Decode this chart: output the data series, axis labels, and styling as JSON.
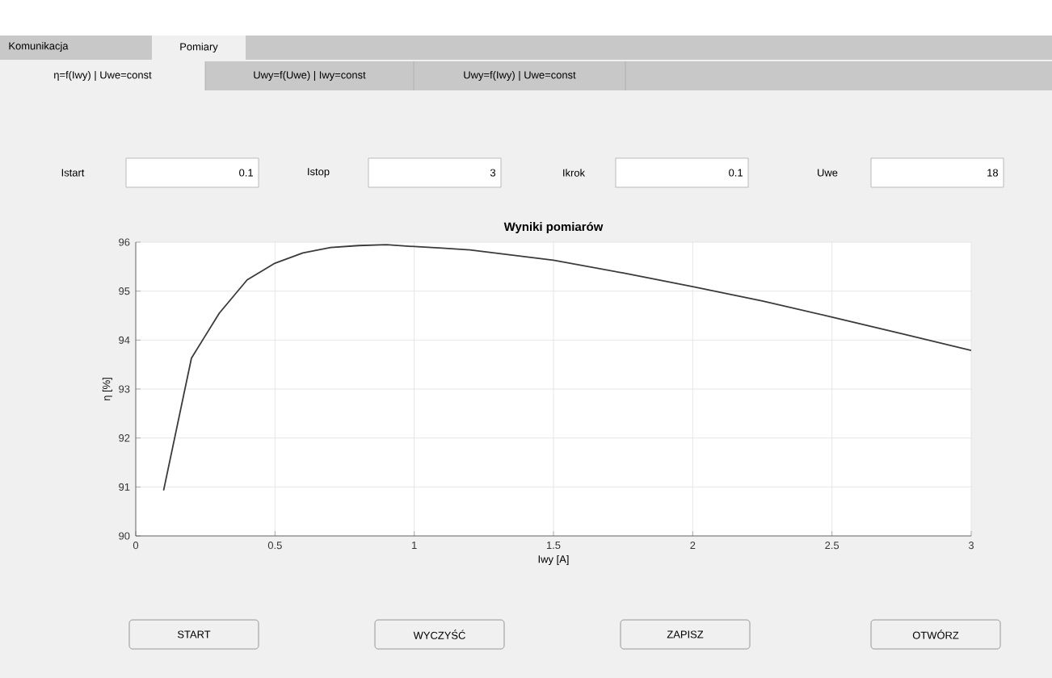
{
  "chart_data": {
    "type": "line",
    "title": "Wyniki pomiarów",
    "xlabel": "Iwy [A]",
    "ylabel": "η [%]",
    "x": [
      0.1,
      0.2,
      0.3,
      0.4,
      0.5,
      0.6,
      0.7,
      0.8,
      0.9,
      1.0,
      1.1,
      1.2,
      1.3,
      1.4,
      1.5,
      1.75,
      2.0,
      2.25,
      2.5,
      2.75,
      3.0
    ],
    "values": [
      90.93,
      93.63,
      94.55,
      95.23,
      95.57,
      95.78,
      95.89,
      95.93,
      95.95,
      95.91,
      95.88,
      95.84,
      95.77,
      95.7,
      95.63,
      95.37,
      95.09,
      94.8,
      94.47,
      94.13,
      93.79
    ],
    "color": "#3a3a3a",
    "xlim": [
      0,
      3
    ],
    "ylim": [
      90,
      96
    ],
    "xticks": [
      0,
      0.5,
      1,
      1.5,
      2,
      2.5,
      3
    ],
    "yticks": [
      90,
      91,
      92,
      93,
      94,
      95,
      96
    ],
    "grid": true,
    "annotations": [
      "Komunikacja",
      "Pomiary",
      "η=f(Iwy) | Uwe=const",
      "Uwy=f(Uwe) | Iwy=const",
      "Uwy=f(Iwy) | Uwe=const",
      "Istart",
      "0.1",
      "Istop",
      "3",
      "Ikrok",
      "0.1",
      "Uwe",
      "18",
      "START",
      "WYCZYŚĆ",
      "ZAPISZ",
      "OTWÓRZ"
    ]
  }
}
